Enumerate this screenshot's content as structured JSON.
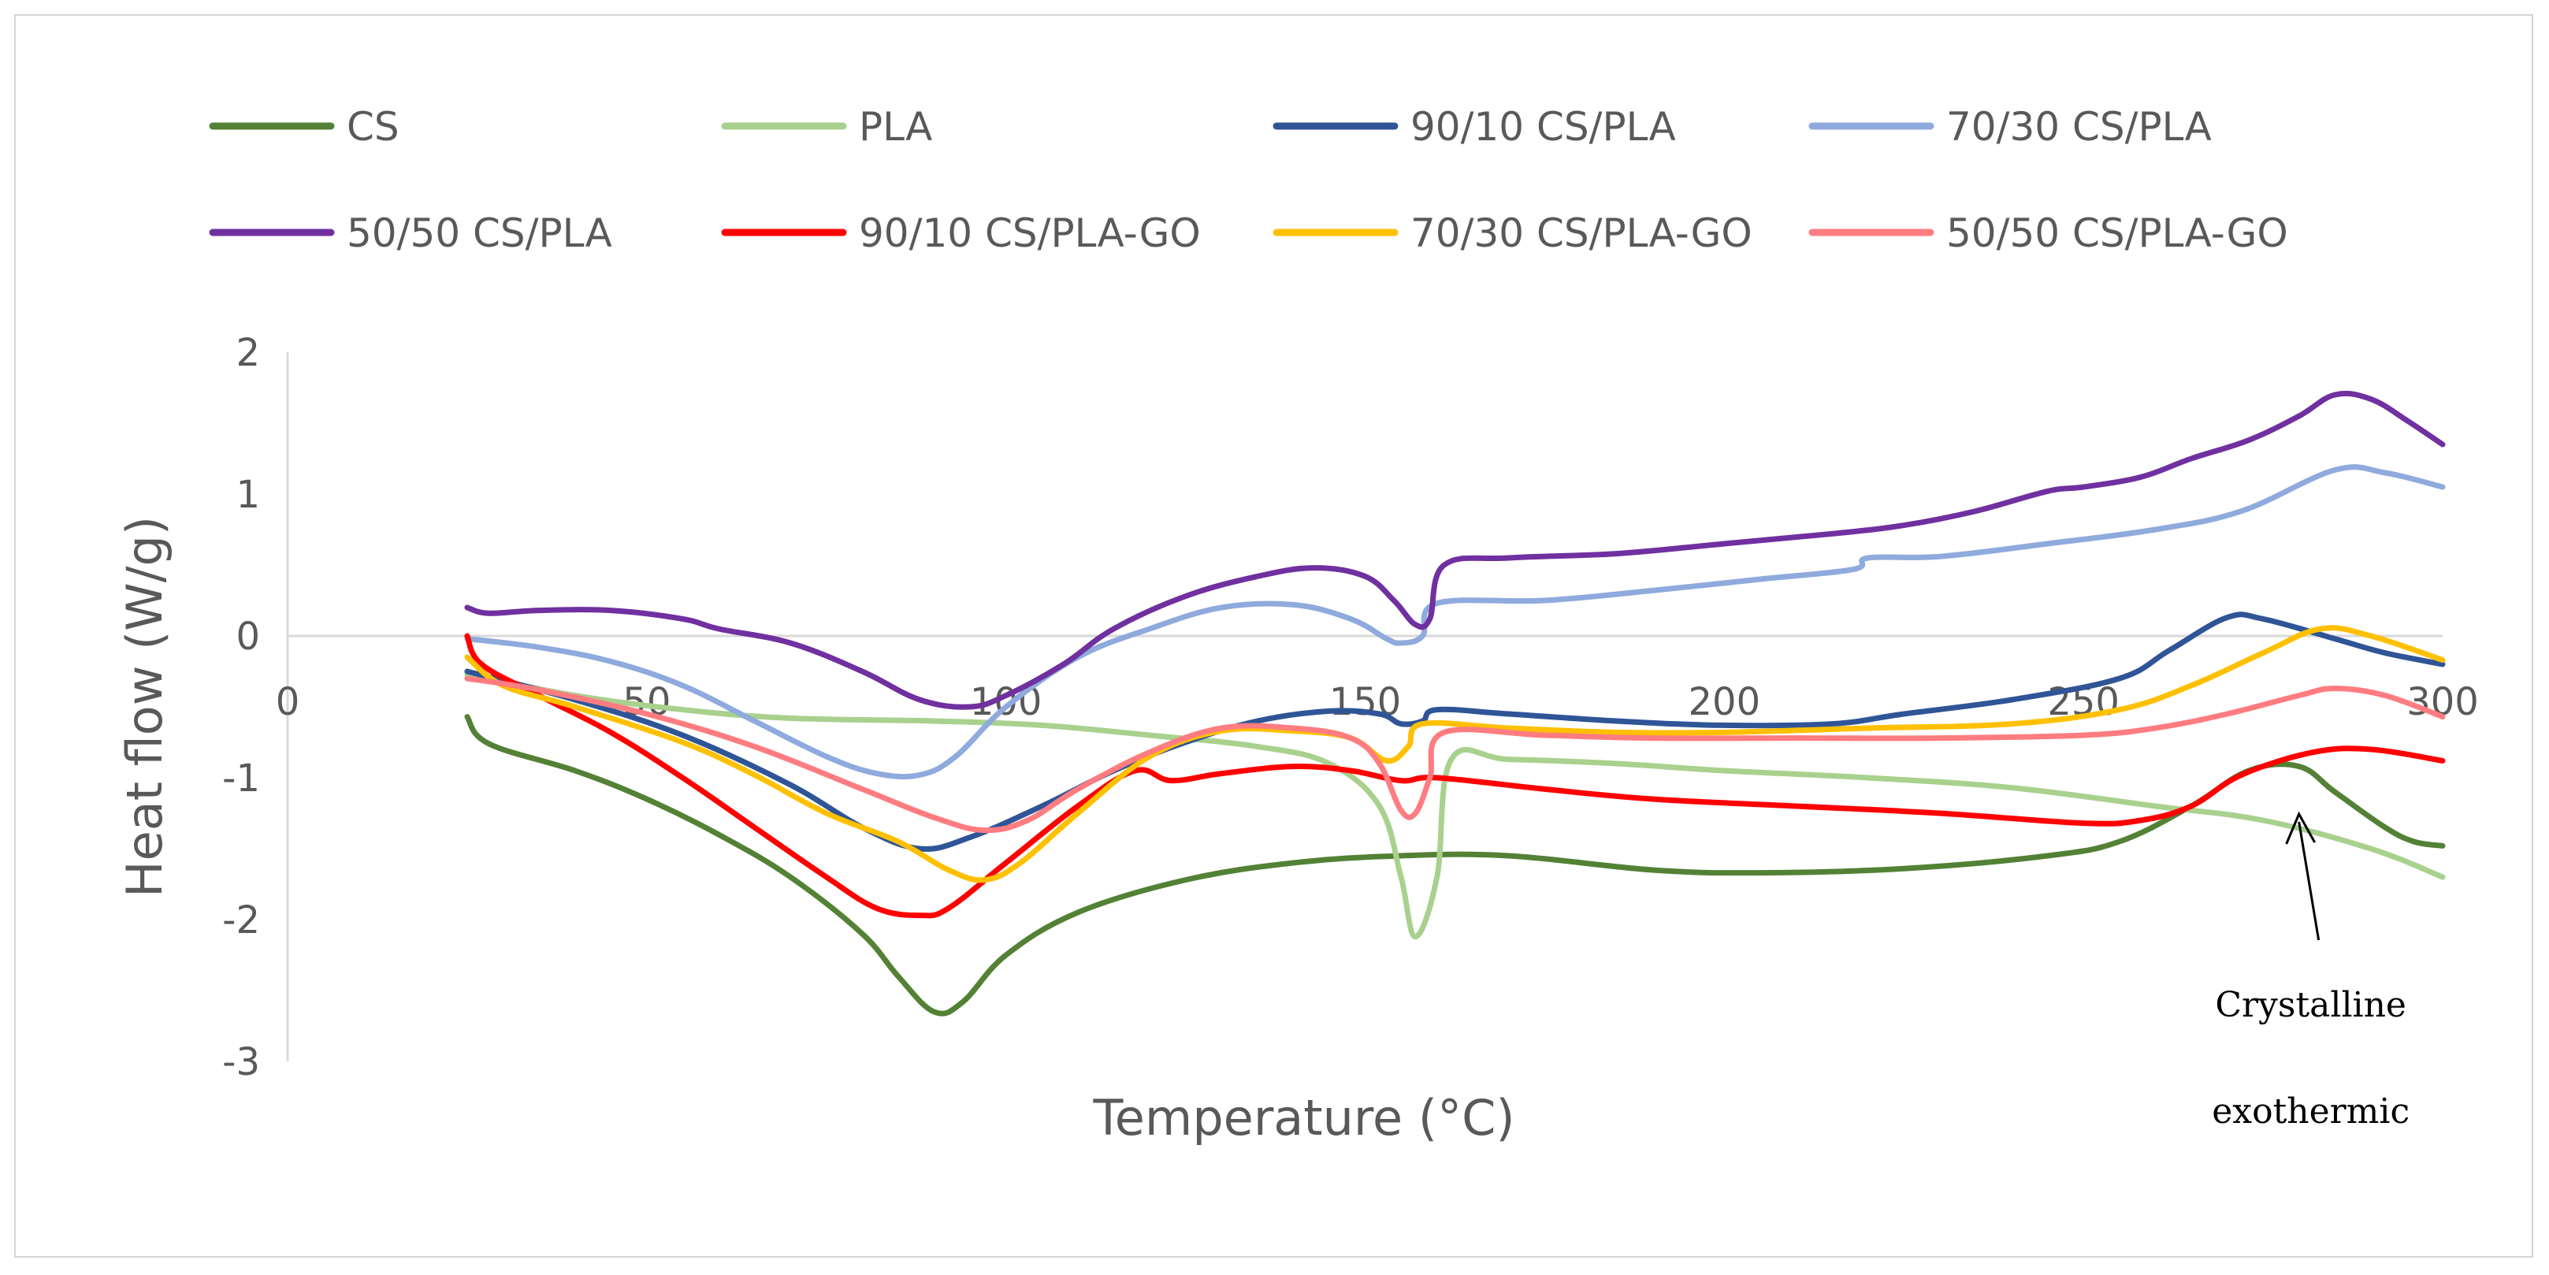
{
  "chart_data": {
    "type": "line",
    "title": "",
    "xlabel": "Temperature (°C)",
    "ylabel": "Heat flow (W/g)",
    "xlim": [
      0,
      300
    ],
    "ylim": [
      -3,
      2
    ],
    "x_ticks": [
      "0",
      "50",
      "100",
      "150",
      "200",
      "250",
      "300"
    ],
    "y_ticks": [
      "2",
      "1",
      "0",
      "-1",
      "-2",
      "-3"
    ],
    "grid": false,
    "legend_position": "top",
    "annotation": {
      "lines": [
        "Crystalline",
        "exothermic"
      ],
      "target_x": 280,
      "target_y": -1.2
    },
    "series": [
      {
        "name": "CS",
        "color": "#538135",
        "points": [
          [
            25,
            -0.57
          ],
          [
            28,
            -0.76
          ],
          [
            40,
            -0.95
          ],
          [
            50,
            -1.15
          ],
          [
            60,
            -1.4
          ],
          [
            70,
            -1.7
          ],
          [
            80,
            -2.1
          ],
          [
            85,
            -2.4
          ],
          [
            90,
            -2.65
          ],
          [
            94,
            -2.58
          ],
          [
            100,
            -2.25
          ],
          [
            110,
            -1.95
          ],
          [
            125,
            -1.72
          ],
          [
            140,
            -1.6
          ],
          [
            155,
            -1.55
          ],
          [
            170,
            -1.55
          ],
          [
            190,
            -1.65
          ],
          [
            205,
            -1.67
          ],
          [
            225,
            -1.64
          ],
          [
            245,
            -1.55
          ],
          [
            255,
            -1.45
          ],
          [
            265,
            -1.2
          ],
          [
            273,
            -0.95
          ],
          [
            280,
            -0.92
          ],
          [
            285,
            -1.1
          ],
          [
            292,
            -1.35
          ],
          [
            296,
            -1.45
          ],
          [
            300,
            -1.48
          ]
        ]
      },
      {
        "name": "PLA",
        "color": "#a9d18e",
        "points": [
          [
            25,
            -0.27
          ],
          [
            40,
            -0.42
          ],
          [
            55,
            -0.52
          ],
          [
            70,
            -0.58
          ],
          [
            90,
            -0.6
          ],
          [
            105,
            -0.63
          ],
          [
            120,
            -0.7
          ],
          [
            135,
            -0.78
          ],
          [
            145,
            -0.9
          ],
          [
            152,
            -1.2
          ],
          [
            155,
            -1.7
          ],
          [
            157,
            -2.12
          ],
          [
            160,
            -1.7
          ],
          [
            162,
            -0.87
          ],
          [
            170,
            -0.87
          ],
          [
            185,
            -0.9
          ],
          [
            200,
            -0.95
          ],
          [
            220,
            -1.0
          ],
          [
            240,
            -1.07
          ],
          [
            260,
            -1.2
          ],
          [
            275,
            -1.3
          ],
          [
            290,
            -1.5
          ],
          [
            300,
            -1.7
          ]
        ]
      },
      {
        "name": "90/10 CS/PLA",
        "color": "#2f5597",
        "points": [
          [
            25,
            -0.25
          ],
          [
            40,
            -0.45
          ],
          [
            55,
            -0.7
          ],
          [
            70,
            -1.05
          ],
          [
            80,
            -1.35
          ],
          [
            88,
            -1.5
          ],
          [
            95,
            -1.42
          ],
          [
            105,
            -1.2
          ],
          [
            115,
            -0.95
          ],
          [
            125,
            -0.75
          ],
          [
            135,
            -0.6
          ],
          [
            145,
            -0.53
          ],
          [
            152,
            -0.55
          ],
          [
            155,
            -0.62
          ],
          [
            158,
            -0.6
          ],
          [
            160,
            -0.52
          ],
          [
            170,
            -0.55
          ],
          [
            185,
            -0.6
          ],
          [
            200,
            -0.63
          ],
          [
            215,
            -0.62
          ],
          [
            225,
            -0.55
          ],
          [
            240,
            -0.45
          ],
          [
            255,
            -0.3
          ],
          [
            262,
            -0.1
          ],
          [
            270,
            0.13
          ],
          [
            275,
            0.12
          ],
          [
            285,
            -0.02
          ],
          [
            292,
            -0.12
          ],
          [
            300,
            -0.2
          ]
        ]
      },
      {
        "name": "70/30 CS/PLA",
        "color": "#8faadc",
        "points": [
          [
            25,
            -0.02
          ],
          [
            35,
            -0.08
          ],
          [
            45,
            -0.18
          ],
          [
            55,
            -0.35
          ],
          [
            65,
            -0.6
          ],
          [
            75,
            -0.85
          ],
          [
            82,
            -0.97
          ],
          [
            88,
            -0.98
          ],
          [
            93,
            -0.85
          ],
          [
            100,
            -0.5
          ],
          [
            110,
            -0.15
          ],
          [
            120,
            0.05
          ],
          [
            130,
            0.2
          ],
          [
            140,
            0.22
          ],
          [
            148,
            0.12
          ],
          [
            153,
            -0.02
          ],
          [
            155,
            -0.05
          ],
          [
            158,
            0.0
          ],
          [
            160,
            0.23
          ],
          [
            175,
            0.25
          ],
          [
            190,
            0.32
          ],
          [
            205,
            0.4
          ],
          [
            218,
            0.47
          ],
          [
            220,
            0.55
          ],
          [
            230,
            0.56
          ],
          [
            245,
            0.65
          ],
          [
            260,
            0.75
          ],
          [
            272,
            0.88
          ],
          [
            285,
            1.17
          ],
          [
            292,
            1.15
          ],
          [
            300,
            1.05
          ]
        ]
      },
      {
        "name": "50/50 CS/PLA",
        "color": "#7030a0",
        "points": [
          [
            25,
            0.2
          ],
          [
            28,
            0.16
          ],
          [
            35,
            0.18
          ],
          [
            45,
            0.18
          ],
          [
            55,
            0.12
          ],
          [
            60,
            0.05
          ],
          [
            70,
            -0.05
          ],
          [
            80,
            -0.25
          ],
          [
            88,
            -0.45
          ],
          [
            95,
            -0.5
          ],
          [
            100,
            -0.42
          ],
          [
            108,
            -0.2
          ],
          [
            115,
            0.05
          ],
          [
            125,
            0.28
          ],
          [
            135,
            0.42
          ],
          [
            143,
            0.48
          ],
          [
            150,
            0.42
          ],
          [
            154,
            0.25
          ],
          [
            157,
            0.08
          ],
          [
            159,
            0.12
          ],
          [
            161,
            0.5
          ],
          [
            170,
            0.55
          ],
          [
            185,
            0.58
          ],
          [
            200,
            0.65
          ],
          [
            215,
            0.72
          ],
          [
            225,
            0.78
          ],
          [
            235,
            0.88
          ],
          [
            245,
            1.02
          ],
          [
            250,
            1.05
          ],
          [
            258,
            1.12
          ],
          [
            265,
            1.25
          ],
          [
            273,
            1.38
          ],
          [
            280,
            1.55
          ],
          [
            285,
            1.7
          ],
          [
            290,
            1.67
          ],
          [
            295,
            1.52
          ],
          [
            300,
            1.35
          ]
        ]
      },
      {
        "name": "90/10 CS/PLA-GO",
        "color": "#ff0000",
        "points": [
          [
            25,
            0.0
          ],
          [
            27,
            -0.2
          ],
          [
            35,
            -0.42
          ],
          [
            45,
            -0.68
          ],
          [
            55,
            -1.0
          ],
          [
            65,
            -1.35
          ],
          [
            75,
            -1.7
          ],
          [
            82,
            -1.92
          ],
          [
            88,
            -1.97
          ],
          [
            92,
            -1.92
          ],
          [
            100,
            -1.6
          ],
          [
            110,
            -1.2
          ],
          [
            118,
            -0.95
          ],
          [
            123,
            -1.02
          ],
          [
            130,
            -0.97
          ],
          [
            140,
            -0.92
          ],
          [
            148,
            -0.95
          ],
          [
            155,
            -1.02
          ],
          [
            160,
            -1.0
          ],
          [
            175,
            -1.08
          ],
          [
            190,
            -1.15
          ],
          [
            210,
            -1.2
          ],
          [
            230,
            -1.25
          ],
          [
            250,
            -1.32
          ],
          [
            258,
            -1.3
          ],
          [
            265,
            -1.2
          ],
          [
            272,
            -0.98
          ],
          [
            282,
            -0.82
          ],
          [
            290,
            -0.8
          ],
          [
            300,
            -0.88
          ]
        ]
      },
      {
        "name": "70/30 CS/PLA-GO",
        "color": "#ffc000",
        "points": [
          [
            25,
            -0.15
          ],
          [
            30,
            -0.35
          ],
          [
            40,
            -0.5
          ],
          [
            55,
            -0.75
          ],
          [
            65,
            -0.98
          ],
          [
            75,
            -1.25
          ],
          [
            85,
            -1.45
          ],
          [
            92,
            -1.65
          ],
          [
            97,
            -1.72
          ],
          [
            102,
            -1.6
          ],
          [
            110,
            -1.25
          ],
          [
            120,
            -0.85
          ],
          [
            130,
            -0.67
          ],
          [
            140,
            -0.67
          ],
          [
            148,
            -0.72
          ],
          [
            153,
            -0.88
          ],
          [
            156,
            -0.78
          ],
          [
            158,
            -0.62
          ],
          [
            170,
            -0.65
          ],
          [
            185,
            -0.68
          ],
          [
            200,
            -0.68
          ],
          [
            220,
            -0.65
          ],
          [
            240,
            -0.62
          ],
          [
            255,
            -0.52
          ],
          [
            265,
            -0.35
          ],
          [
            275,
            -0.12
          ],
          [
            283,
            0.05
          ],
          [
            290,
            0.0
          ],
          [
            300,
            -0.17
          ]
        ]
      },
      {
        "name": "50/50 CS/PLA-GO",
        "color": "#ff7c80",
        "points": [
          [
            25,
            -0.3
          ],
          [
            35,
            -0.38
          ],
          [
            50,
            -0.55
          ],
          [
            65,
            -0.78
          ],
          [
            80,
            -1.08
          ],
          [
            90,
            -1.28
          ],
          [
            97,
            -1.37
          ],
          [
            103,
            -1.3
          ],
          [
            110,
            -1.08
          ],
          [
            120,
            -0.82
          ],
          [
            130,
            -0.65
          ],
          [
            140,
            -0.65
          ],
          [
            148,
            -0.72
          ],
          [
            152,
            -0.9
          ],
          [
            155,
            -1.23
          ],
          [
            157,
            -1.25
          ],
          [
            159,
            -1.0
          ],
          [
            161,
            -0.68
          ],
          [
            175,
            -0.7
          ],
          [
            190,
            -0.72
          ],
          [
            210,
            -0.72
          ],
          [
            230,
            -0.72
          ],
          [
            250,
            -0.7
          ],
          [
            260,
            -0.65
          ],
          [
            270,
            -0.55
          ],
          [
            280,
            -0.42
          ],
          [
            285,
            -0.37
          ],
          [
            292,
            -0.42
          ],
          [
            300,
            -0.57
          ]
        ]
      }
    ]
  }
}
